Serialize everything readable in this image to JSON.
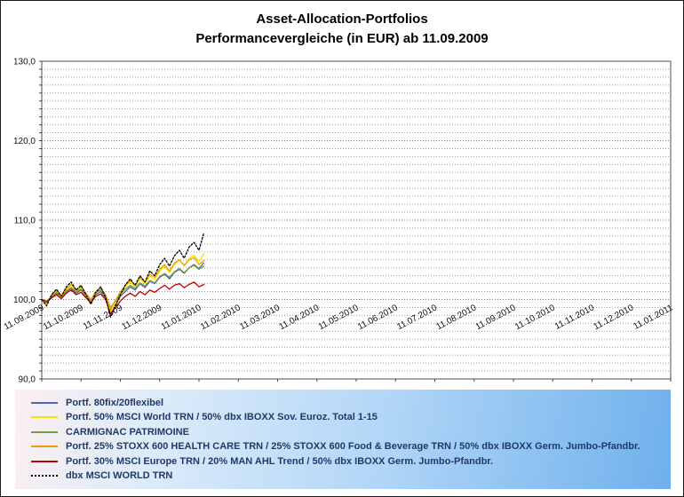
{
  "title": {
    "line1": "Asset-Allocation-Portfolios",
    "line2": "Performancevergleiche (in EUR) ab 11.09.2009"
  },
  "chart_data": {
    "type": "line",
    "title": "Asset-Allocation-Portfolios — Performancevergleiche (in EUR) ab 11.09.2009",
    "ylabel": "",
    "xlabel": "",
    "ylim": [
      90,
      130
    ],
    "y_minor_step": 1,
    "x_axis_crosses_at": 100,
    "y_ticks": [
      {
        "value": 90,
        "label": "90,0"
      },
      {
        "value": 100,
        "label": "100,0"
      },
      {
        "value": 110,
        "label": "110,0"
      },
      {
        "value": 120,
        "label": "120,0"
      },
      {
        "value": 130,
        "label": "130,0"
      }
    ],
    "x_tick_labels": [
      "11.09.2009",
      "11.10.2009",
      "11.11.2009",
      "11.12.2009",
      "11.01.2010",
      "11.02.2010",
      "11.03.2010",
      "11.04.2010",
      "11.05.2010",
      "11.06.2010",
      "11.07.2010",
      "11.08.2010",
      "11.09.2010",
      "11.10.2010",
      "11.11.2010",
      "11.12.2010",
      "11.01.2011"
    ],
    "x_unit": "months since 11.09.2009 (tick spacing = 1 month)",
    "x_step": 0.125,
    "grid": "horizontal dotted, every 1.0 unit",
    "legend_position": "bottom",
    "series": [
      {
        "name": "Portf. 80fix/20flexibel",
        "color": "#4a66ac",
        "dash": false,
        "values": [
          100.0,
          99.6,
          100.3,
          100.8,
          100.2,
          101.0,
          101.4,
          100.8,
          101.2,
          100.4,
          99.8,
          100.6,
          101.0,
          100.2,
          98.6,
          99.4,
          100.4,
          101.0,
          101.6,
          101.2,
          102.0,
          101.5,
          102.3,
          102.0,
          102.8,
          103.2,
          102.6,
          103.4,
          103.8,
          103.3,
          104.0,
          104.4,
          103.9,
          104.6
        ]
      },
      {
        "name": "Portf. 50% MSCI World TRN / 50% dbx IBOXX Sov. Euroz. Total 1-15",
        "color": "#f0e400",
        "dash": false,
        "values": [
          100.0,
          99.4,
          100.5,
          101.0,
          100.3,
          101.2,
          101.8,
          101.0,
          101.5,
          100.5,
          99.6,
          100.8,
          101.4,
          100.4,
          98.4,
          99.6,
          100.8,
          101.6,
          102.2,
          101.6,
          102.6,
          102.0,
          103.0,
          102.5,
          103.6,
          104.2,
          103.4,
          104.4,
          105.0,
          104.2,
          105.2,
          105.6,
          104.8,
          105.8
        ]
      },
      {
        "name": "CARMIGNAC PATRIMOINE",
        "color": "#7a9a40",
        "dash": false,
        "values": [
          100.0,
          99.8,
          100.4,
          100.9,
          100.4,
          101.1,
          101.5,
          101.0,
          101.3,
          100.6,
          100.0,
          100.9,
          101.2,
          100.5,
          99.0,
          99.8,
          100.7,
          101.3,
          101.8,
          101.4,
          102.1,
          101.7,
          102.4,
          102.1,
          102.9,
          103.3,
          102.8,
          103.5,
          103.9,
          103.4,
          104.0,
          104.3,
          103.8,
          104.2
        ]
      },
      {
        "name": "Portf. 25% STOXX 600 HEALTH CARE TRN / 25% STOXX 600 Food & Beverage TRN / 50% dbx IBOXX Germ. Jumbo-Pfandbr.",
        "color": "#f2a000",
        "dash": false,
        "values": [
          100.0,
          99.5,
          100.6,
          101.2,
          100.5,
          101.4,
          101.9,
          101.2,
          101.6,
          100.8,
          100.0,
          101.0,
          101.5,
          100.6,
          98.8,
          99.9,
          101.0,
          101.8,
          102.4,
          101.8,
          102.8,
          102.2,
          103.2,
          102.8,
          103.8,
          104.4,
          103.6,
          104.6,
          105.0,
          104.3,
          105.0,
          105.3,
          104.4,
          104.9
        ]
      },
      {
        "name": "Portf. 30% MSCI Europe TRN / 20% MAN AHL Trend / 50% dbx IBOXX Germ. Jumbo-Pfandbr.",
        "color": "#c00000",
        "dash": false,
        "values": [
          100.0,
          99.7,
          100.2,
          100.6,
          100.1,
          100.8,
          101.2,
          100.6,
          100.9,
          100.2,
          99.6,
          100.4,
          100.7,
          100.0,
          98.2,
          99.0,
          99.8,
          100.4,
          100.8,
          100.4,
          101.0,
          100.6,
          101.2,
          100.9,
          101.4,
          101.8,
          101.3,
          101.8,
          102.0,
          101.5,
          101.9,
          102.2,
          101.6,
          101.9
        ]
      },
      {
        "name": "dbx MSCI WORLD TRN",
        "color": "#000000",
        "dash": true,
        "values": [
          100.0,
          99.2,
          100.6,
          101.3,
          100.4,
          101.6,
          102.2,
          101.2,
          101.8,
          100.6,
          99.4,
          100.9,
          101.6,
          100.3,
          97.8,
          99.2,
          100.6,
          101.8,
          102.6,
          101.8,
          103.0,
          102.2,
          103.6,
          103.0,
          104.4,
          105.2,
          104.2,
          105.5,
          106.2,
          105.2,
          106.6,
          107.2,
          106.2,
          108.4
        ]
      }
    ]
  },
  "legend": {
    "items": [
      {
        "label": "Portf. 80fix/20flexibel",
        "color": "#4a66ac",
        "dash": false
      },
      {
        "label": "Portf. 50% MSCI World TRN / 50% dbx IBOXX Sov. Euroz. Total 1-15",
        "color": "#f0e400",
        "dash": false
      },
      {
        "label": "CARMIGNAC PATRIMOINE",
        "color": "#7a9a40",
        "dash": false
      },
      {
        "label": "Portf. 25% STOXX 600 HEALTH CARE TRN / 25% STOXX 600 Food & Beverage TRN / 50% dbx IBOXX Germ. Jumbo-Pfandbr.",
        "color": "#f2a000",
        "dash": false
      },
      {
        "label": "Portf. 30% MSCI Europe TRN / 20% MAN AHL Trend / 50% dbx IBOXX Germ. Jumbo-Pfandbr.",
        "color": "#c00000",
        "dash": false
      },
      {
        "label": "dbx MSCI WORLD TRN",
        "color": "#000000",
        "dash": true
      }
    ]
  }
}
